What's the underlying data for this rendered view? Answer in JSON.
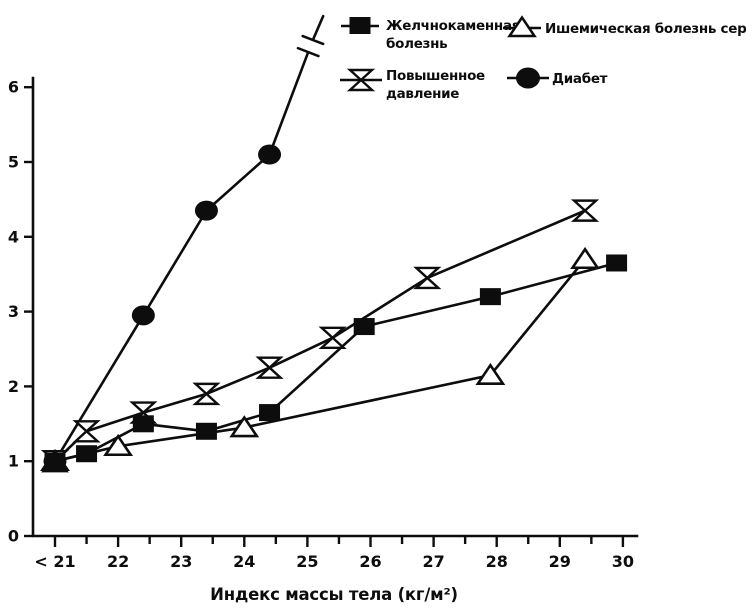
{
  "figure": {
    "background": "#ffffff",
    "ink": "#0d0d0d"
  },
  "legend": {
    "items": [
      {
        "id": "gallstones",
        "marker": "square",
        "label_lines": [
          "Желчнокаменная",
          "болезнь"
        ]
      },
      {
        "id": "hypertension",
        "marker": "bowtie",
        "label_lines": [
          "Повышенное",
          "давление"
        ]
      },
      {
        "id": "chd",
        "marker": "triangle",
        "label_lines": [
          "Ишемическая болезнь сердца"
        ]
      },
      {
        "id": "diabetes",
        "marker": "circle",
        "label_lines": [
          "Диабет"
        ]
      }
    ]
  },
  "chart_data": {
    "type": "line",
    "title": "",
    "xlabel": "Индекс массы тела (кг/м²)",
    "ylabel": "",
    "x_tick_values": [
      21,
      22,
      23,
      24,
      25,
      26,
      27,
      28,
      29,
      30
    ],
    "x_tick_labels": [
      "< 21",
      "22",
      "23",
      "24",
      "25",
      "26",
      "27",
      "28",
      "29",
      "30"
    ],
    "x_minor_step": 0.5,
    "xlim": [
      20.65,
      30.25
    ],
    "y_ticks": [
      0,
      1,
      2,
      3,
      4,
      5,
      6
    ],
    "ylim": [
      0,
      6.1
    ],
    "grid": "off",
    "legend_position": "top",
    "series": [
      {
        "id": "diabetes",
        "name": "Диабет",
        "marker": "circle",
        "x": [
          21,
          22.4,
          23.4,
          24.4
        ],
        "y": [
          1.0,
          2.95,
          4.35,
          5.1
        ],
        "extension": {
          "to_x": 25.25,
          "to_y": 6.95,
          "break_at": [
            25.05,
            6.55
          ]
        }
      },
      {
        "id": "hypertension",
        "name": "Повышенное давление",
        "marker": "bowtie",
        "x": [
          21,
          21.5,
          22.4,
          23.4,
          24.4,
          25.4,
          26.9,
          29.4
        ],
        "y": [
          1.0,
          1.4,
          1.65,
          1.9,
          2.25,
          2.65,
          3.45,
          4.35
        ]
      },
      {
        "id": "chd",
        "name": "Ишемическая болезнь сердца",
        "marker": "triangle",
        "x": [
          21,
          22.0,
          24.0,
          27.9,
          29.4
        ],
        "y": [
          1.0,
          1.2,
          1.45,
          2.15,
          3.7
        ]
      },
      {
        "id": "gallstones",
        "name": "Желчнокаменная болезнь",
        "marker": "square",
        "x": [
          21,
          21.5,
          22.4,
          23.4,
          24.4,
          25.9,
          27.9,
          29.9
        ],
        "y": [
          1.0,
          1.1,
          1.5,
          1.4,
          1.65,
          2.8,
          3.2,
          3.65
        ]
      }
    ]
  }
}
